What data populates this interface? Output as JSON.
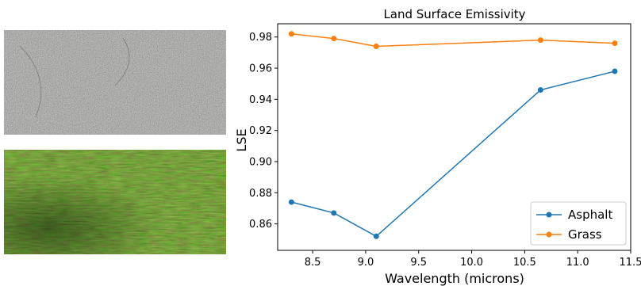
{
  "images": {
    "top": {
      "subject": "asphalt surface texture",
      "colors": {
        "base": "#8f8f8c",
        "dark": "#6f6f6d",
        "light": "#bdbdba"
      }
    },
    "bottom": {
      "subject": "grass surface texture",
      "colors": {
        "base": "#3f6a22",
        "dark": "#1d3a10",
        "light": "#86b04a"
      }
    }
  },
  "chart_data": {
    "type": "line",
    "title": "Land Surface Emissivity",
    "xlabel": "Wavelength (microns)",
    "ylabel": "LSE",
    "xlim": [
      8.17,
      11.5
    ],
    "ylim": [
      0.843,
      0.9885
    ],
    "xticks": [
      "8.5",
      "9.0",
      "9.5",
      "10.0",
      "10.5",
      "11.0",
      "11.5"
    ],
    "xtick_values": [
      8.5,
      9.0,
      9.5,
      10.0,
      10.5,
      11.0,
      11.5
    ],
    "yticks": [
      "0.86",
      "0.88",
      "0.90",
      "0.92",
      "0.94",
      "0.96",
      "0.98"
    ],
    "ytick_values": [
      0.86,
      0.88,
      0.9,
      0.92,
      0.94,
      0.96,
      0.98
    ],
    "grid": false,
    "legend_position": "lower-right",
    "series": [
      {
        "name": "Asphalt",
        "color": "#1f77b4",
        "marker": "circle",
        "x": [
          8.3,
          8.7,
          9.1,
          10.65,
          11.35
        ],
        "y": [
          0.874,
          0.867,
          0.852,
          0.946,
          0.958
        ]
      },
      {
        "name": "Grass",
        "color": "#ff7f0e",
        "marker": "circle",
        "x": [
          8.3,
          8.7,
          9.1,
          10.65,
          11.35
        ],
        "y": [
          0.982,
          0.979,
          0.974,
          0.978,
          0.976
        ]
      }
    ]
  }
}
